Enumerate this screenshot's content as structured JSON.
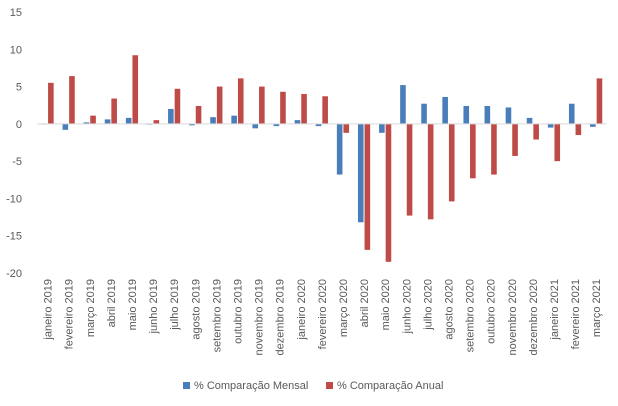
{
  "chart_data": {
    "type": "bar",
    "categories": [
      "janeiro 2019",
      "fevereiro 2019",
      "março 2019",
      "abril 2019",
      "maio 2019",
      "junho 2019",
      "julho 2019",
      "agosto 2019",
      "setembro 2019",
      "outubro 2019",
      "novembro 2019",
      "dezembro 2019",
      "janeiro 2020",
      "fevereiro 2020",
      "março 2020",
      "abril 2020",
      "maio 2020",
      "junho 2020",
      "julho 2020",
      "agosto 2020",
      "setembro 2020",
      "outubro 2020",
      "novembro 2020",
      "dezembro 2020",
      "janeiro 2021",
      "fevereiro 2021",
      "março 2021"
    ],
    "series": [
      {
        "name": "% Comparação Mensal",
        "color": "#4a7ebb",
        "values": [
          0,
          -0.8,
          0.2,
          0.6,
          0.8,
          -0.1,
          2.0,
          -0.2,
          0.9,
          1.1,
          -0.6,
          -0.3,
          0.5,
          -0.3,
          -6.8,
          -13.2,
          -1.2,
          5.2,
          2.7,
          3.6,
          2.4,
          2.4,
          2.2,
          0.8,
          -0.5,
          2.7,
          -0.4
        ]
      },
      {
        "name": "% Comparação Anual",
        "color": "#be4b48",
        "values": [
          5.5,
          6.4,
          1.1,
          3.4,
          9.2,
          0.5,
          4.7,
          2.4,
          5.0,
          6.1,
          5.0,
          4.3,
          4.0,
          3.7,
          -1.2,
          -16.9,
          -18.5,
          -12.3,
          -12.8,
          -10.4,
          -7.3,
          -6.8,
          -4.3,
          -2.1,
          -5.0,
          -1.5,
          6.1
        ]
      }
    ],
    "yticks": [
      "15",
      "10",
      "5",
      "0",
      "-5",
      "-10",
      "-15",
      "-20"
    ],
    "ylim": [
      -20,
      15
    ],
    "grid": false,
    "legend_position": "bottom"
  }
}
